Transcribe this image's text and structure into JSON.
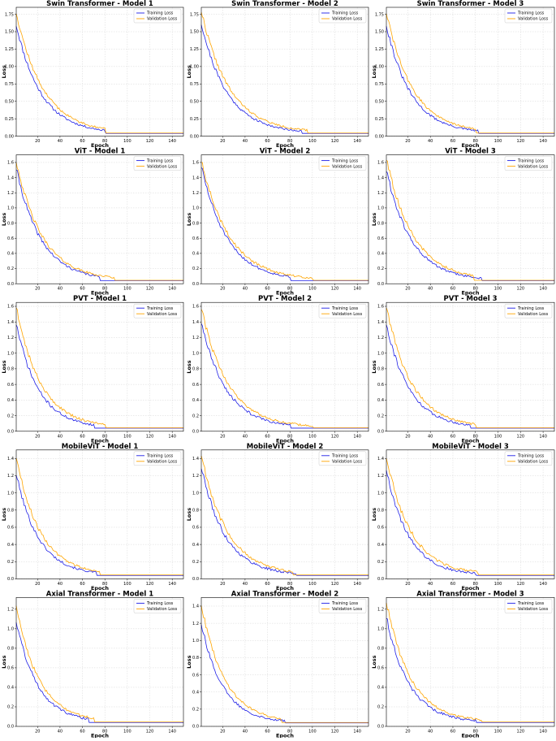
{
  "colors": {
    "training": "#1f1fe6",
    "validation": "#ffa500",
    "grid": "#d6d6d6"
  },
  "chart_data": [
    {
      "type": "line",
      "title": "Swin Transformer - Model 1",
      "xlabel": "Epoch",
      "ylabel": "Loss",
      "xlim": [
        1,
        150
      ],
      "ylim": [
        0,
        1.85
      ],
      "xticks": [
        20,
        40,
        60,
        80,
        100,
        120,
        140
      ],
      "yticks": [
        0,
        0.25,
        0.5,
        0.75,
        1.0,
        1.25,
        1.5,
        1.75
      ],
      "ytick_labels": [
        "0.00",
        "0.25",
        "0.50",
        "0.75",
        "1.00",
        "1.25",
        "1.50",
        "1.75"
      ],
      "legend": "top-right",
      "grid": true,
      "series": [
        {
          "name": "Training Loss",
          "start": 1.6,
          "decay": 0.045,
          "floor": 0.04,
          "end_epoch": 80,
          "noise": 0.03,
          "seed": 11
        },
        {
          "name": "Validation Loss",
          "start": 1.78,
          "decay": 0.042,
          "floor": 0.045,
          "end_epoch": 80,
          "noise": 0.03,
          "seed": 12
        }
      ]
    },
    {
      "type": "line",
      "title": "Swin Transformer - Model 2",
      "xlabel": "Epoch",
      "ylabel": "Loss",
      "xlim": [
        1,
        150
      ],
      "ylim": [
        0,
        1.85
      ],
      "xticks": [
        20,
        40,
        60,
        80,
        100,
        120,
        140
      ],
      "yticks": [
        0,
        0.25,
        0.5,
        0.75,
        1.0,
        1.25,
        1.5,
        1.75
      ],
      "ytick_labels": [
        "0.00",
        "0.25",
        "0.50",
        "0.75",
        "1.00",
        "1.25",
        "1.50",
        "1.75"
      ],
      "legend": "top-right",
      "grid": true,
      "series": [
        {
          "name": "Training Loss",
          "start": 1.62,
          "decay": 0.043,
          "floor": 0.04,
          "end_epoch": 90,
          "noise": 0.03,
          "seed": 21
        },
        {
          "name": "Validation Loss",
          "start": 1.8,
          "decay": 0.04,
          "floor": 0.045,
          "end_epoch": 95,
          "noise": 0.03,
          "seed": 22
        }
      ]
    },
    {
      "type": "line",
      "title": "Swin Transformer - Model 3",
      "xlabel": "Epoch",
      "ylabel": "Loss",
      "xlim": [
        1,
        150
      ],
      "ylim": [
        0,
        1.85
      ],
      "xticks": [
        20,
        40,
        60,
        80,
        100,
        120,
        140
      ],
      "yticks": [
        0,
        0.25,
        0.5,
        0.75,
        1.0,
        1.25,
        1.5,
        1.75
      ],
      "ytick_labels": [
        "0.00",
        "0.25",
        "0.50",
        "0.75",
        "1.00",
        "1.25",
        "1.50",
        "1.75"
      ],
      "legend": "top-right",
      "grid": true,
      "series": [
        {
          "name": "Training Loss",
          "start": 1.6,
          "decay": 0.046,
          "floor": 0.04,
          "end_epoch": 82,
          "noise": 0.03,
          "seed": 31
        },
        {
          "name": "Validation Loss",
          "start": 1.78,
          "decay": 0.043,
          "floor": 0.045,
          "end_epoch": 80,
          "noise": 0.03,
          "seed": 32
        }
      ]
    },
    {
      "type": "line",
      "title": "ViT - Model 1",
      "xlabel": "Epoch",
      "ylabel": "Loss",
      "xlim": [
        1,
        150
      ],
      "ylim": [
        0,
        1.7
      ],
      "xticks": [
        20,
        40,
        60,
        80,
        100,
        120,
        140
      ],
      "yticks": [
        0,
        0.2,
        0.4,
        0.6,
        0.8,
        1.0,
        1.2,
        1.4,
        1.6
      ],
      "ytick_labels": [
        "0.0",
        "0.2",
        "0.4",
        "0.6",
        "0.8",
        "1.0",
        "1.2",
        "1.4",
        "1.6"
      ],
      "legend": "top-right",
      "grid": true,
      "series": [
        {
          "name": "Training Loss",
          "start": 1.52,
          "decay": 0.045,
          "floor": 0.04,
          "end_epoch": 75,
          "noise": 0.03,
          "seed": 41
        },
        {
          "name": "Validation Loss",
          "start": 1.62,
          "decay": 0.043,
          "floor": 0.045,
          "end_epoch": 88,
          "noise": 0.03,
          "seed": 42
        }
      ]
    },
    {
      "type": "line",
      "title": "ViT - Model 2",
      "xlabel": "Epoch",
      "ylabel": "Loss",
      "xlim": [
        1,
        150
      ],
      "ylim": [
        0,
        1.7
      ],
      "xticks": [
        20,
        40,
        60,
        80,
        100,
        120,
        140
      ],
      "yticks": [
        0,
        0.2,
        0.4,
        0.6,
        0.8,
        1.0,
        1.2,
        1.4,
        1.6
      ],
      "ytick_labels": [
        "0.0",
        "0.2",
        "0.4",
        "0.6",
        "0.8",
        "1.0",
        "1.2",
        "1.4",
        "1.6"
      ],
      "legend": "top-right",
      "grid": true,
      "series": [
        {
          "name": "Training Loss",
          "start": 1.55,
          "decay": 0.043,
          "floor": 0.04,
          "end_epoch": 80,
          "noise": 0.03,
          "seed": 51
        },
        {
          "name": "Validation Loss",
          "start": 1.62,
          "decay": 0.04,
          "floor": 0.045,
          "end_epoch": 100,
          "noise": 0.03,
          "seed": 52
        }
      ]
    },
    {
      "type": "line",
      "title": "ViT - Model 3",
      "xlabel": "Epoch",
      "ylabel": "Loss",
      "xlim": [
        1,
        150
      ],
      "ylim": [
        0,
        1.7
      ],
      "xticks": [
        20,
        40,
        60,
        80,
        100,
        120,
        140
      ],
      "yticks": [
        0,
        0.2,
        0.4,
        0.6,
        0.8,
        1.0,
        1.2,
        1.4,
        1.6
      ],
      "ytick_labels": [
        "0.0",
        "0.2",
        "0.4",
        "0.6",
        "0.8",
        "1.0",
        "1.2",
        "1.4",
        "1.6"
      ],
      "legend": "top-right",
      "grid": true,
      "series": [
        {
          "name": "Training Loss",
          "start": 1.5,
          "decay": 0.045,
          "floor": 0.04,
          "end_epoch": 85,
          "noise": 0.03,
          "seed": 61
        },
        {
          "name": "Validation Loss",
          "start": 1.65,
          "decay": 0.042,
          "floor": 0.045,
          "end_epoch": 78,
          "noise": 0.03,
          "seed": 62
        }
      ]
    },
    {
      "type": "line",
      "title": "PVT - Model 1",
      "xlabel": "Epoch",
      "ylabel": "Loss",
      "xlim": [
        1,
        150
      ],
      "ylim": [
        0,
        1.65
      ],
      "xticks": [
        20,
        40,
        60,
        80,
        100,
        120,
        140
      ],
      "yticks": [
        0,
        0.2,
        0.4,
        0.6,
        0.8,
        1.0,
        1.2,
        1.4,
        1.6
      ],
      "ytick_labels": [
        "0.0",
        "0.2",
        "0.4",
        "0.6",
        "0.8",
        "1.0",
        "1.2",
        "1.4",
        "1.6"
      ],
      "legend": "top-right",
      "grid": true,
      "series": [
        {
          "name": "Training Loss",
          "start": 1.38,
          "decay": 0.05,
          "floor": 0.04,
          "end_epoch": 70,
          "noise": 0.03,
          "seed": 71
        },
        {
          "name": "Validation Loss",
          "start": 1.6,
          "decay": 0.046,
          "floor": 0.045,
          "end_epoch": 80,
          "noise": 0.03,
          "seed": 72
        }
      ]
    },
    {
      "type": "line",
      "title": "PVT - Model 2",
      "xlabel": "Epoch",
      "ylabel": "Loss",
      "xlim": [
        1,
        150
      ],
      "ylim": [
        0,
        1.65
      ],
      "xticks": [
        20,
        40,
        60,
        80,
        100,
        120,
        140
      ],
      "yticks": [
        0,
        0.2,
        0.4,
        0.6,
        0.8,
        1.0,
        1.2,
        1.4,
        1.6
      ],
      "ytick_labels": [
        "0.0",
        "0.2",
        "0.4",
        "0.6",
        "0.8",
        "1.0",
        "1.2",
        "1.4",
        "1.6"
      ],
      "legend": "top-right",
      "grid": true,
      "series": [
        {
          "name": "Training Loss",
          "start": 1.4,
          "decay": 0.045,
          "floor": 0.04,
          "end_epoch": 80,
          "noise": 0.03,
          "seed": 81
        },
        {
          "name": "Validation Loss",
          "start": 1.58,
          "decay": 0.042,
          "floor": 0.045,
          "end_epoch": 100,
          "noise": 0.03,
          "seed": 82
        }
      ]
    },
    {
      "type": "line",
      "title": "PVT - Model 3",
      "xlabel": "Epoch",
      "ylabel": "Loss",
      "xlim": [
        1,
        150
      ],
      "ylim": [
        0,
        1.65
      ],
      "xticks": [
        20,
        40,
        60,
        80,
        100,
        120,
        140
      ],
      "yticks": [
        0,
        0.2,
        0.4,
        0.6,
        0.8,
        1.0,
        1.2,
        1.4,
        1.6
      ],
      "ytick_labels": [
        "0.0",
        "0.2",
        "0.4",
        "0.6",
        "0.8",
        "1.0",
        "1.2",
        "1.4",
        "1.6"
      ],
      "legend": "top-right",
      "grid": true,
      "series": [
        {
          "name": "Training Loss",
          "start": 1.38,
          "decay": 0.048,
          "floor": 0.04,
          "end_epoch": 75,
          "noise": 0.03,
          "seed": 91
        },
        {
          "name": "Validation Loss",
          "start": 1.6,
          "decay": 0.045,
          "floor": 0.045,
          "end_epoch": 80,
          "noise": 0.03,
          "seed": 92
        }
      ]
    },
    {
      "type": "line",
      "title": "MobileViT - Model 1",
      "xlabel": "Epoch",
      "ylabel": "Loss",
      "xlim": [
        1,
        150
      ],
      "ylim": [
        0,
        1.5
      ],
      "xticks": [
        20,
        40,
        60,
        80,
        100,
        120,
        140
      ],
      "yticks": [
        0,
        0.2,
        0.4,
        0.6,
        0.8,
        1.0,
        1.2,
        1.4
      ],
      "ytick_labels": [
        "0.0",
        "0.2",
        "0.4",
        "0.6",
        "0.8",
        "1.0",
        "1.2",
        "1.4"
      ],
      "legend": "top-right",
      "grid": true,
      "series": [
        {
          "name": "Training Loss",
          "start": 1.22,
          "decay": 0.05,
          "floor": 0.04,
          "end_epoch": 72,
          "noise": 0.025,
          "seed": 101
        },
        {
          "name": "Validation Loss",
          "start": 1.42,
          "decay": 0.047,
          "floor": 0.045,
          "end_epoch": 75,
          "noise": 0.025,
          "seed": 102
        }
      ]
    },
    {
      "type": "line",
      "title": "MobileViT - Model 2",
      "xlabel": "Epoch",
      "ylabel": "Loss",
      "xlim": [
        1,
        150
      ],
      "ylim": [
        0,
        1.5
      ],
      "xticks": [
        20,
        40,
        60,
        80,
        100,
        120,
        140
      ],
      "yticks": [
        0,
        0.2,
        0.4,
        0.6,
        0.8,
        1.0,
        1.2,
        1.4
      ],
      "ytick_labels": [
        "0.0",
        "0.2",
        "0.4",
        "0.6",
        "0.8",
        "1.0",
        "1.2",
        "1.4"
      ],
      "legend": "top-right",
      "grid": true,
      "series": [
        {
          "name": "Training Loss",
          "start": 1.3,
          "decay": 0.047,
          "floor": 0.04,
          "end_epoch": 85,
          "noise": 0.03,
          "seed": 111
        },
        {
          "name": "Validation Loss",
          "start": 1.45,
          "decay": 0.044,
          "floor": 0.045,
          "end_epoch": 82,
          "noise": 0.03,
          "seed": 112
        }
      ]
    },
    {
      "type": "line",
      "title": "MobileViT - Model 3",
      "xlabel": "Epoch",
      "ylabel": "Loss",
      "xlim": [
        1,
        150
      ],
      "ylim": [
        0,
        1.5
      ],
      "xticks": [
        20,
        40,
        60,
        80,
        100,
        120,
        140
      ],
      "yticks": [
        0,
        0.2,
        0.4,
        0.6,
        0.8,
        1.0,
        1.2,
        1.4
      ],
      "ytick_labels": [
        "0.0",
        "0.2",
        "0.4",
        "0.6",
        "0.8",
        "1.0",
        "1.2",
        "1.4"
      ],
      "legend": "top-right",
      "grid": true,
      "series": [
        {
          "name": "Training Loss",
          "start": 1.28,
          "decay": 0.05,
          "floor": 0.04,
          "end_epoch": 80,
          "noise": 0.03,
          "seed": 121
        },
        {
          "name": "Validation Loss",
          "start": 1.42,
          "decay": 0.046,
          "floor": 0.045,
          "end_epoch": 82,
          "noise": 0.03,
          "seed": 122
        }
      ]
    },
    {
      "type": "line",
      "title": "Axial Transformer - Model 1",
      "xlabel": "Epoch",
      "ylabel": "Loss",
      "xlim": [
        1,
        150
      ],
      "ylim": [
        0,
        1.32
      ],
      "xticks": [
        20,
        40,
        60,
        80,
        100,
        120,
        140
      ],
      "yticks": [
        0,
        0.2,
        0.4,
        0.6,
        0.8,
        1.0,
        1.2
      ],
      "ytick_labels": [
        "0.0",
        "0.2",
        "0.4",
        "0.6",
        "0.8",
        "1.0",
        "1.2"
      ],
      "legend": "top-right",
      "grid": true,
      "series": [
        {
          "name": "Training Loss",
          "start": 1.08,
          "decay": 0.052,
          "floor": 0.04,
          "end_epoch": 65,
          "noise": 0.025,
          "seed": 131
        },
        {
          "name": "Validation Loss",
          "start": 1.25,
          "decay": 0.05,
          "floor": 0.045,
          "end_epoch": 70,
          "noise": 0.025,
          "seed": 132
        }
      ]
    },
    {
      "type": "line",
      "title": "Axial Transformer - Model 2",
      "xlabel": "Epoch",
      "ylabel": "Loss",
      "xlim": [
        1,
        150
      ],
      "ylim": [
        0,
        1.5
      ],
      "xticks": [
        20,
        40,
        60,
        80,
        100,
        120,
        140
      ],
      "yticks": [
        0,
        0.2,
        0.4,
        0.6,
        0.8,
        1.0,
        1.2,
        1.4
      ],
      "ytick_labels": [
        "0.0",
        "0.2",
        "0.4",
        "0.6",
        "0.8",
        "1.0",
        "1.2",
        "1.4"
      ],
      "legend": "top-right",
      "grid": true,
      "series": [
        {
          "name": "Training Loss",
          "start": 1.2,
          "decay": 0.052,
          "floor": 0.04,
          "end_epoch": 75,
          "noise": 0.025,
          "seed": 141
        },
        {
          "name": "Validation Loss",
          "start": 1.42,
          "decay": 0.048,
          "floor": 0.045,
          "end_epoch": 72,
          "noise": 0.025,
          "seed": 142
        }
      ]
    },
    {
      "type": "line",
      "title": "Axial Transformer - Model 3",
      "xlabel": "Epoch",
      "ylabel": "Loss",
      "xlim": [
        1,
        150
      ],
      "ylim": [
        0,
        1.32
      ],
      "xticks": [
        20,
        40,
        60,
        80,
        100,
        120,
        140
      ],
      "yticks": [
        0,
        0.2,
        0.4,
        0.6,
        0.8,
        1.0,
        1.2
      ],
      "ytick_labels": [
        "0.0",
        "0.2",
        "0.4",
        "0.6",
        "0.8",
        "1.0",
        "1.2"
      ],
      "legend": "top-right",
      "grid": true,
      "series": [
        {
          "name": "Training Loss",
          "start": 1.12,
          "decay": 0.05,
          "floor": 0.04,
          "end_epoch": 80,
          "noise": 0.025,
          "seed": 151
        },
        {
          "name": "Validation Loss",
          "start": 1.28,
          "decay": 0.047,
          "floor": 0.045,
          "end_epoch": 85,
          "noise": 0.025,
          "seed": 152
        }
      ]
    }
  ]
}
